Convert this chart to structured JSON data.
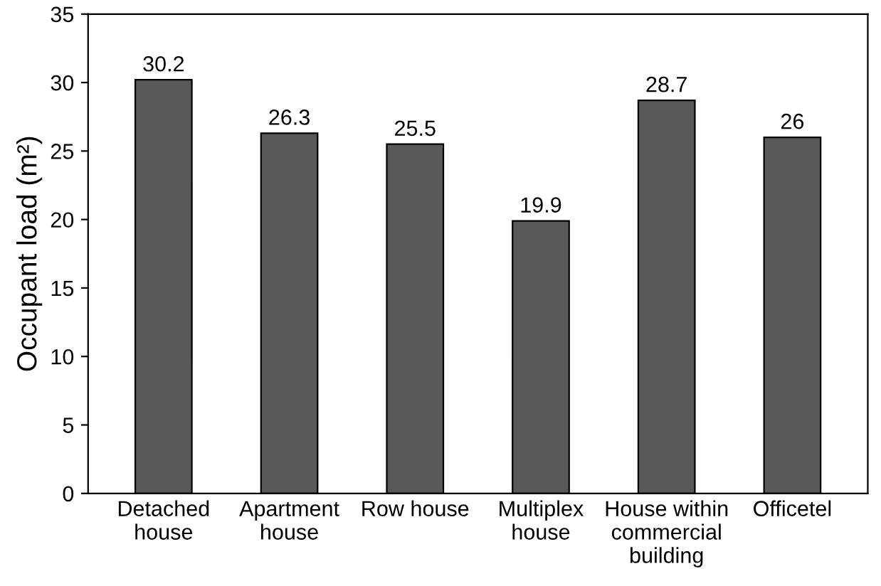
{
  "chart_data": {
    "type": "bar",
    "ylabel": "Occupant load (m²)",
    "categories": [
      "Detached\nhouse",
      "Apartment\nhouse",
      "Row house",
      "Multiplex\nhouse",
      "House within\ncommercial\nbuilding",
      "Officetel"
    ],
    "values": [
      30.2,
      26.3,
      25.5,
      19.9,
      28.7,
      26
    ],
    "color": "#595959",
    "data_labels": true,
    "ylim": [
      0,
      35
    ],
    "yticks": [
      0,
      5,
      10,
      15,
      20,
      25,
      30,
      35
    ],
    "grid": false
  }
}
